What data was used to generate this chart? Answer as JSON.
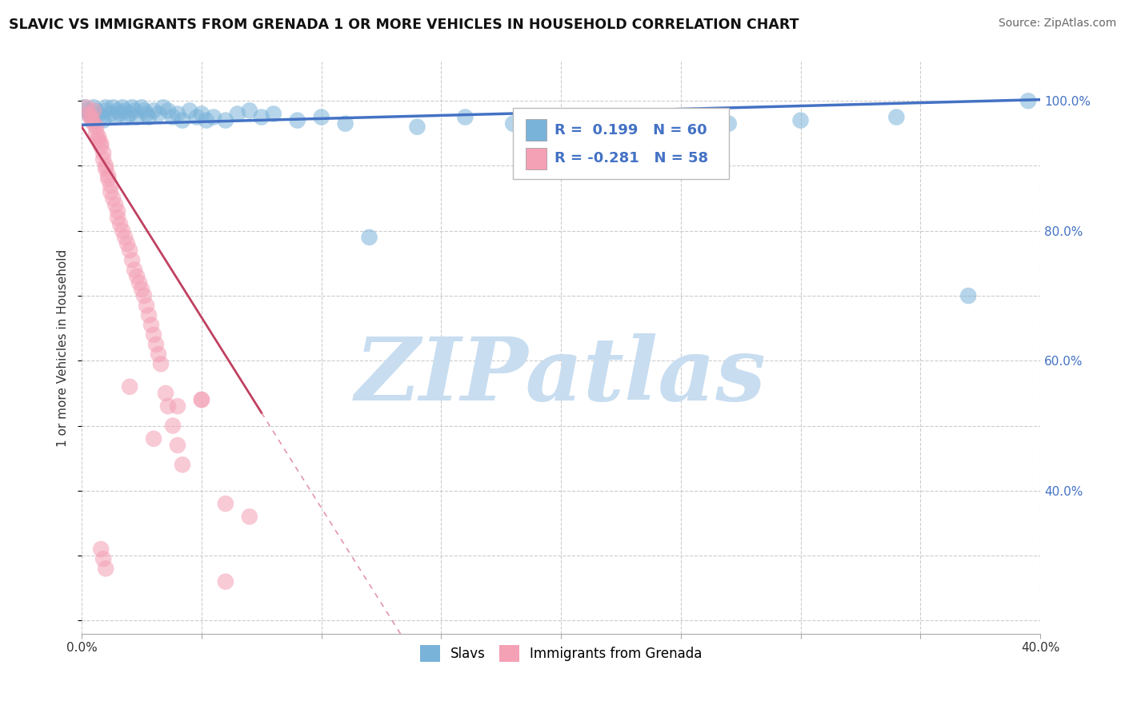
{
  "title": "SLAVIC VS IMMIGRANTS FROM GRENADA 1 OR MORE VEHICLES IN HOUSEHOLD CORRELATION CHART",
  "source": "Source: ZipAtlas.com",
  "ylabel": "1 or more Vehicles in Household",
  "xlim": [
    0.0,
    0.4
  ],
  "ylim": [
    0.18,
    1.06
  ],
  "slavs_color": "#7ab3d9",
  "grenada_color": "#f4a0b5",
  "slavs_line_color": "#4472c4",
  "grenada_line_color": "#d05070",
  "grenada_line_color_solid": "#c04060",
  "R_slavs": 0.199,
  "N_slavs": 60,
  "R_grenada": -0.281,
  "N_grenada": 58,
  "background_color": "#ffffff",
  "grid_color": "#cccccc",
  "watermark_text": "ZIPatlas",
  "watermark_color": "#c8ddf0",
  "legend_slavs": "Slavs",
  "legend_grenada": "Immigrants from Grenada",
  "slavs_x": [
    0.001,
    0.002,
    0.003,
    0.004,
    0.005,
    0.005,
    0.006,
    0.007,
    0.008,
    0.009,
    0.01,
    0.01,
    0.012,
    0.013,
    0.014,
    0.015,
    0.016,
    0.017,
    0.018,
    0.019,
    0.02,
    0.021,
    0.022,
    0.023,
    0.025,
    0.026,
    0.027,
    0.028,
    0.03,
    0.032,
    0.034,
    0.036,
    0.038,
    0.04,
    0.042,
    0.045,
    0.048,
    0.05,
    0.052,
    0.055,
    0.06,
    0.065,
    0.07,
    0.075,
    0.08,
    0.09,
    0.1,
    0.11,
    0.12,
    0.14,
    0.16,
    0.18,
    0.2,
    0.22,
    0.25,
    0.27,
    0.3,
    0.34,
    0.37,
    0.395
  ],
  "slavs_y": [
    0.99,
    0.985,
    0.98,
    0.975,
    0.99,
    0.97,
    0.985,
    0.98,
    0.975,
    0.97,
    0.99,
    0.985,
    0.98,
    0.99,
    0.975,
    0.985,
    0.98,
    0.99,
    0.985,
    0.975,
    0.98,
    0.99,
    0.985,
    0.975,
    0.99,
    0.985,
    0.98,
    0.975,
    0.985,
    0.98,
    0.99,
    0.985,
    0.975,
    0.98,
    0.97,
    0.985,
    0.975,
    0.98,
    0.97,
    0.975,
    0.97,
    0.98,
    0.985,
    0.975,
    0.98,
    0.97,
    0.975,
    0.965,
    0.79,
    0.96,
    0.975,
    0.965,
    0.96,
    0.97,
    0.975,
    0.965,
    0.97,
    0.975,
    0.7,
    1.0
  ],
  "grenada_x": [
    0.002,
    0.003,
    0.004,
    0.004,
    0.005,
    0.005,
    0.006,
    0.006,
    0.007,
    0.007,
    0.008,
    0.008,
    0.009,
    0.009,
    0.01,
    0.01,
    0.011,
    0.011,
    0.012,
    0.012,
    0.013,
    0.014,
    0.015,
    0.015,
    0.016,
    0.017,
    0.018,
    0.019,
    0.02,
    0.021,
    0.022,
    0.023,
    0.024,
    0.025,
    0.026,
    0.027,
    0.028,
    0.029,
    0.03,
    0.031,
    0.032,
    0.033,
    0.035,
    0.036,
    0.038,
    0.04,
    0.042,
    0.05,
    0.06,
    0.07,
    0.02,
    0.03,
    0.04,
    0.05,
    0.06,
    0.008,
    0.009,
    0.01
  ],
  "grenada_y": [
    0.99,
    0.98,
    0.975,
    0.97,
    0.985,
    0.965,
    0.96,
    0.95,
    0.945,
    0.94,
    0.935,
    0.93,
    0.92,
    0.91,
    0.9,
    0.895,
    0.885,
    0.88,
    0.87,
    0.86,
    0.85,
    0.84,
    0.83,
    0.82,
    0.81,
    0.8,
    0.79,
    0.78,
    0.77,
    0.755,
    0.74,
    0.73,
    0.72,
    0.71,
    0.7,
    0.685,
    0.67,
    0.655,
    0.64,
    0.625,
    0.61,
    0.595,
    0.55,
    0.53,
    0.5,
    0.47,
    0.44,
    0.54,
    0.38,
    0.36,
    0.56,
    0.48,
    0.53,
    0.54,
    0.26,
    0.31,
    0.295,
    0.28
  ]
}
